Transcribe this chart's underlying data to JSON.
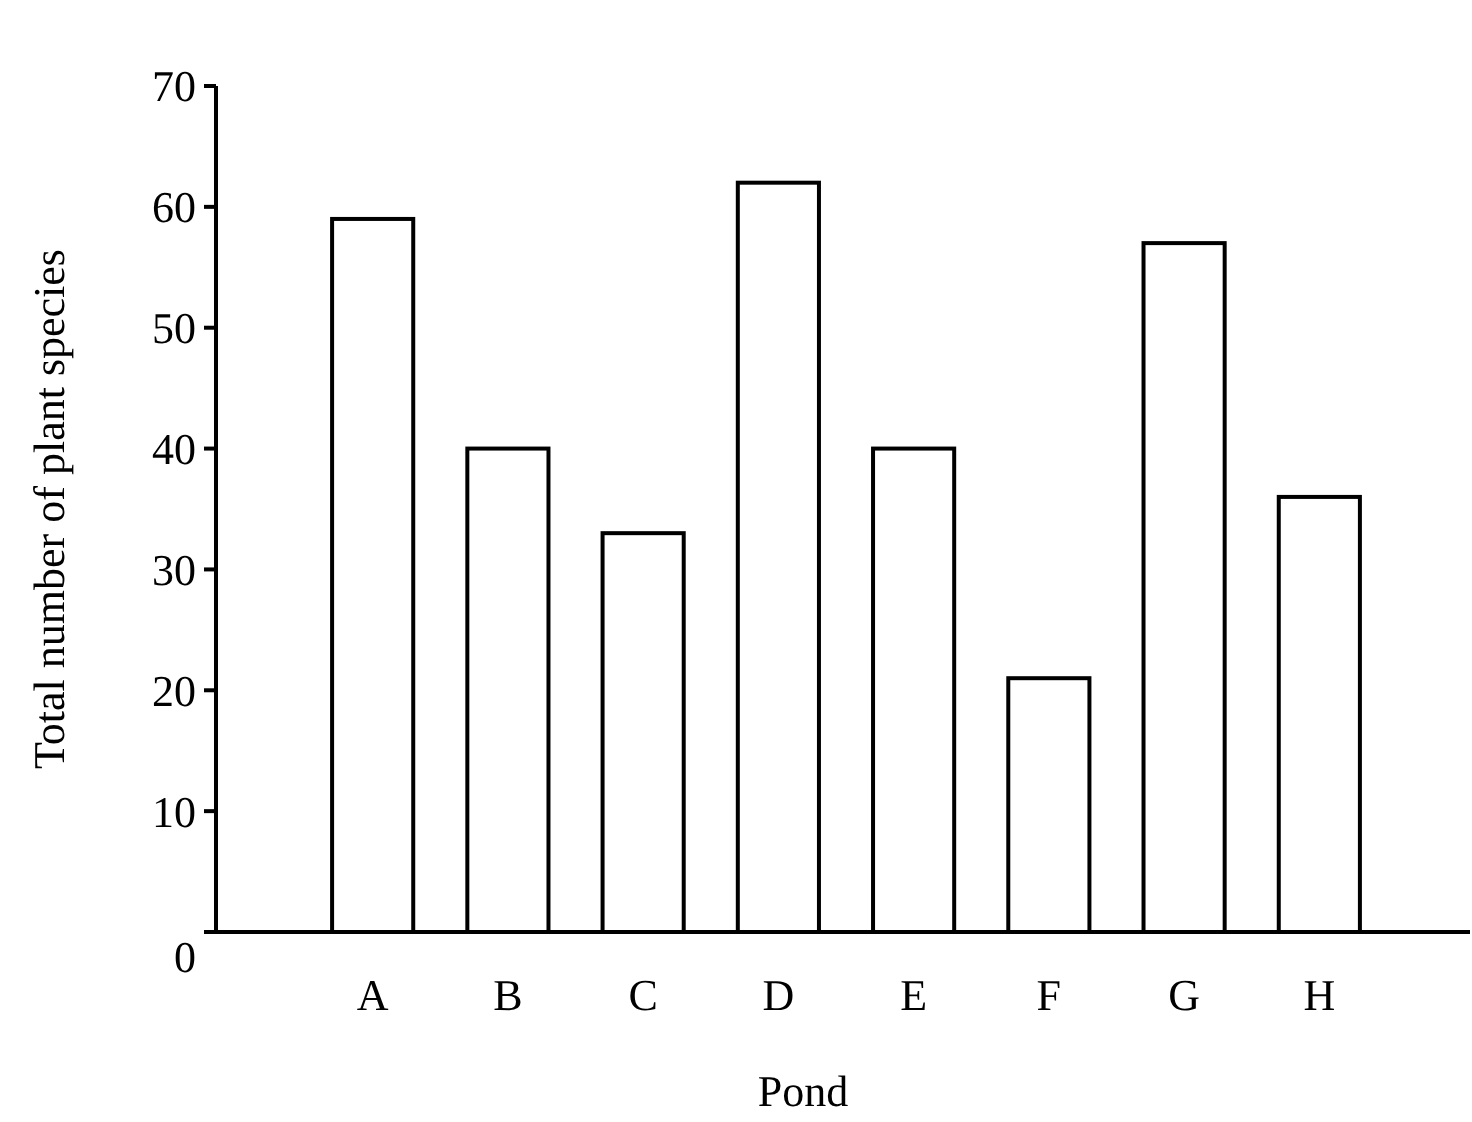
{
  "chart_data": {
    "type": "bar",
    "xlabel": "Pond",
    "ylabel": "Total number of plant species",
    "categories": [
      "A",
      "B",
      "C",
      "D",
      "E",
      "F",
      "G",
      "H"
    ],
    "values": [
      59,
      40,
      33,
      62,
      40,
      21,
      57,
      36
    ],
    "color": "#ffffff",
    "ylim": [
      0,
      70
    ],
    "yticks": [
      0,
      10,
      20,
      30,
      40,
      50,
      60,
      70
    ],
    "grid": false
  }
}
